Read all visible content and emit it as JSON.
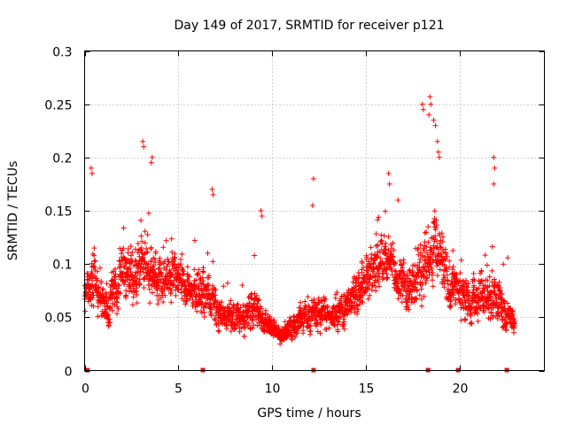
{
  "chart_data": {
    "type": "scatter",
    "title": "Day 149 of 2017, SRMTID for receiver p121",
    "xlabel": "GPS time / hours",
    "ylabel": "SRMTID / TECUs",
    "xlim": [
      0,
      24.5
    ],
    "ylim": [
      0,
      0.3
    ],
    "xticks": [
      0,
      5,
      10,
      15,
      20
    ],
    "yticks": [
      0,
      0.05,
      0.1,
      0.15,
      0.2,
      0.25,
      0.3
    ],
    "xtick_labels": [
      "0",
      "5",
      "10",
      "15",
      "20"
    ],
    "ytick_labels": [
      "0",
      "0.05",
      "0.1",
      "0.15",
      "0.2",
      "0.25",
      "0.3"
    ],
    "grid": true,
    "marker": "+",
    "color": "#ff0000",
    "x_range": [
      0,
      23
    ],
    "baseline_markers_x": [
      0.15,
      6.3,
      12.2,
      18.3,
      19.9,
      22.5
    ],
    "series": [
      {
        "name": "SRMTID",
        "profile": [
          [
            0.0,
            0.07,
            0.03
          ],
          [
            0.5,
            0.09,
            0.04
          ],
          [
            1.0,
            0.06,
            0.03
          ],
          [
            1.5,
            0.07,
            0.03
          ],
          [
            2.0,
            0.09,
            0.035
          ],
          [
            2.5,
            0.09,
            0.035
          ],
          [
            3.0,
            0.1,
            0.04
          ],
          [
            3.5,
            0.09,
            0.035
          ],
          [
            4.0,
            0.085,
            0.03
          ],
          [
            4.5,
            0.09,
            0.03
          ],
          [
            5.0,
            0.085,
            0.03
          ],
          [
            5.5,
            0.08,
            0.03
          ],
          [
            6.0,
            0.07,
            0.025
          ],
          [
            6.5,
            0.075,
            0.03
          ],
          [
            7.0,
            0.06,
            0.025
          ],
          [
            7.5,
            0.05,
            0.015
          ],
          [
            8.0,
            0.05,
            0.02
          ],
          [
            8.5,
            0.05,
            0.02
          ],
          [
            9.0,
            0.06,
            0.025
          ],
          [
            9.5,
            0.05,
            0.02
          ],
          [
            10.0,
            0.035,
            0.012
          ],
          [
            10.5,
            0.035,
            0.012
          ],
          [
            11.0,
            0.04,
            0.015
          ],
          [
            11.5,
            0.05,
            0.02
          ],
          [
            12.0,
            0.05,
            0.02
          ],
          [
            12.5,
            0.055,
            0.02
          ],
          [
            13.0,
            0.055,
            0.02
          ],
          [
            13.5,
            0.055,
            0.02
          ],
          [
            14.0,
            0.06,
            0.02
          ],
          [
            14.5,
            0.075,
            0.025
          ],
          [
            15.0,
            0.09,
            0.03
          ],
          [
            15.5,
            0.1,
            0.03
          ],
          [
            16.0,
            0.105,
            0.03
          ],
          [
            16.5,
            0.095,
            0.03
          ],
          [
            17.0,
            0.085,
            0.03
          ],
          [
            17.5,
            0.075,
            0.03
          ],
          [
            18.0,
            0.1,
            0.04
          ],
          [
            18.5,
            0.11,
            0.045
          ],
          [
            19.0,
            0.1,
            0.04
          ],
          [
            19.5,
            0.08,
            0.03
          ],
          [
            20.0,
            0.07,
            0.025
          ],
          [
            20.5,
            0.06,
            0.025
          ],
          [
            21.0,
            0.075,
            0.03
          ],
          [
            21.5,
            0.07,
            0.03
          ],
          [
            22.0,
            0.07,
            0.03
          ],
          [
            22.5,
            0.05,
            0.02
          ],
          [
            23.0,
            0.045,
            0.015
          ]
        ],
        "peaks": [
          [
            0.35,
            0.19
          ],
          [
            0.4,
            0.185
          ],
          [
            3.1,
            0.215
          ],
          [
            3.15,
            0.21
          ],
          [
            3.6,
            0.2
          ],
          [
            3.55,
            0.195
          ],
          [
            6.8,
            0.17
          ],
          [
            6.85,
            0.165
          ],
          [
            9.4,
            0.15
          ],
          [
            9.45,
            0.145
          ],
          [
            12.2,
            0.18
          ],
          [
            12.15,
            0.155
          ],
          [
            16.2,
            0.185
          ],
          [
            16.25,
            0.175
          ],
          [
            16.7,
            0.16
          ],
          [
            18.0,
            0.25
          ],
          [
            18.05,
            0.245
          ],
          [
            18.4,
            0.257
          ],
          [
            18.45,
            0.25
          ],
          [
            18.35,
            0.24
          ],
          [
            18.6,
            0.235
          ],
          [
            18.7,
            0.23
          ],
          [
            18.8,
            0.215
          ],
          [
            18.85,
            0.205
          ],
          [
            18.9,
            0.2
          ],
          [
            21.8,
            0.2
          ],
          [
            21.85,
            0.19
          ],
          [
            21.8,
            0.175
          ]
        ],
        "n_points": 2600
      }
    ]
  }
}
